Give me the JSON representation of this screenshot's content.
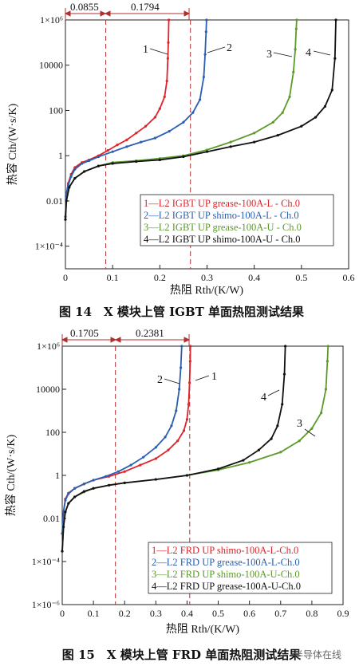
{
  "colors": {
    "red": "#e0222a",
    "blue": "#2a5fb0",
    "green": "#5c9a2a",
    "black": "#111111",
    "marker": "#b03030"
  },
  "watermark": "半导体在线",
  "figures": [
    {
      "caption": "图 14　X 模块上管 IGBT 单面热阻测试结果",
      "ylabel": "热容 Cth/(W·s/K)",
      "xlabel": "热阻 Rth/(K/W)",
      "markers": [
        "0.0855",
        "0.1794"
      ],
      "legend": [
        "1—L2 IGBT UP grease-100A-L - Ch.0",
        "2—L2 IGBT UP shimo-100A-L - Ch.0",
        "3—L2 IGBT UP grease-100A-U - Ch.0",
        "4—L2 IGBT UP shimo-100A-U - Ch.0"
      ],
      "curve_labels": [
        "1",
        "2",
        "3",
        "4"
      ]
    },
    {
      "caption": "图 15　X 模块上管 FRD 单面热阻测试结果",
      "ylabel": "热容 Cth/(W·s/K)",
      "xlabel": "热阻 Rth/(K/W)",
      "markers": [
        "0.1705",
        "0.2381"
      ],
      "legend": [
        "1—L2 FRD UP shimo-100A-L-Ch.0",
        "2—L2 FRD UP grease-100A-L-Ch.0",
        "3—L2 FRD UP shimo-100A-U-Ch.0",
        "4—L2 FRD UP grease-100A-U-Ch.0"
      ],
      "curve_labels": [
        "2",
        "1",
        "4",
        "3"
      ]
    }
  ],
  "chart_data": [
    {
      "type": "line",
      "xlabel": "热阻 Rth/(K/W)",
      "ylabel": "热容 Cth/(W·s/K)",
      "xlim": [
        0,
        0.6
      ],
      "ylim": [
        1e-05,
        1000000.0
      ],
      "yscale": "log",
      "xticks": [
        "0",
        "0.1",
        "0.2",
        "0.3",
        "0.4",
        "0.5",
        "0.6"
      ],
      "yticks": [
        "1×10⁶",
        "10000",
        "100",
        "1",
        "0.01",
        "1×10⁻⁴"
      ],
      "ytick_values": [
        1000000,
        10000,
        100,
        1,
        0.01,
        0.0001
      ],
      "vlines": [
        0.0855,
        0.2649
      ],
      "series": [
        {
          "name": "1—L2 IGBT UP grease-100A-L - Ch.0",
          "color": "red",
          "points": [
            [
              0.0,
              0.002
            ],
            [
              0.002,
              0.02
            ],
            [
              0.006,
              0.06
            ],
            [
              0.012,
              0.15
            ],
            [
              0.02,
              0.3
            ],
            [
              0.035,
              0.5
            ],
            [
              0.05,
              0.65
            ],
            [
              0.07,
              1.0
            ],
            [
              0.09,
              1.7
            ],
            [
              0.11,
              3
            ],
            [
              0.13,
              5
            ],
            [
              0.15,
              10
            ],
            [
              0.17,
              20
            ],
            [
              0.19,
              50
            ],
            [
              0.2,
              120
            ],
            [
              0.21,
              400
            ],
            [
              0.215,
              2000
            ],
            [
              0.217,
              20000
            ],
            [
              0.218,
              100000
            ],
            [
              0.219,
              1000000
            ]
          ]
        },
        {
          "name": "2—L2 IGBT UP shimo-100A-L - Ch.0",
          "color": "blue",
          "points": [
            [
              0.0,
              0.002
            ],
            [
              0.002,
              0.02
            ],
            [
              0.006,
              0.05
            ],
            [
              0.012,
              0.12
            ],
            [
              0.02,
              0.25
            ],
            [
              0.035,
              0.45
            ],
            [
              0.05,
              0.6
            ],
            [
              0.07,
              0.9
            ],
            [
              0.1,
              1.5
            ],
            [
              0.13,
              2.5
            ],
            [
              0.16,
              4
            ],
            [
              0.19,
              6
            ],
            [
              0.22,
              12
            ],
            [
              0.25,
              30
            ],
            [
              0.27,
              80
            ],
            [
              0.285,
              300
            ],
            [
              0.293,
              3000
            ],
            [
              0.296,
              30000
            ],
            [
              0.298,
              300000
            ],
            [
              0.299,
              1000000
            ]
          ]
        },
        {
          "name": "3—L2 IGBT UP grease-100A-U - Ch.0",
          "color": "green",
          "points": [
            [
              0.0,
              0.0015
            ],
            [
              0.002,
              0.01
            ],
            [
              0.008,
              0.04
            ],
            [
              0.02,
              0.1
            ],
            [
              0.04,
              0.2
            ],
            [
              0.07,
              0.35
            ],
            [
              0.1,
              0.5
            ],
            [
              0.15,
              0.6
            ],
            [
              0.2,
              0.75
            ],
            [
              0.25,
              1.0
            ],
            [
              0.3,
              1.8
            ],
            [
              0.35,
              4
            ],
            [
              0.4,
              10
            ],
            [
              0.44,
              30
            ],
            [
              0.46,
              80
            ],
            [
              0.475,
              400
            ],
            [
              0.483,
              5000
            ],
            [
              0.487,
              50000
            ],
            [
              0.489,
              400000
            ],
            [
              0.49,
              1000000
            ]
          ]
        },
        {
          "name": "4—L2 IGBT UP shimo-100A-U - Ch.0",
          "color": "black",
          "points": [
            [
              0.0,
              0.0015
            ],
            [
              0.002,
              0.01
            ],
            [
              0.008,
              0.04
            ],
            [
              0.02,
              0.1
            ],
            [
              0.04,
              0.2
            ],
            [
              0.07,
              0.35
            ],
            [
              0.1,
              0.45
            ],
            [
              0.15,
              0.55
            ],
            [
              0.2,
              0.65
            ],
            [
              0.25,
              0.9
            ],
            [
              0.3,
              1.5
            ],
            [
              0.35,
              2.5
            ],
            [
              0.4,
              4
            ],
            [
              0.45,
              8
            ],
            [
              0.5,
              20
            ],
            [
              0.53,
              50
            ],
            [
              0.55,
              150
            ],
            [
              0.565,
              800
            ],
            [
              0.571,
              20000
            ],
            [
              0.573,
              1000000
            ]
          ]
        }
      ]
    },
    {
      "type": "line",
      "xlabel": "热阻 Rth/(K/W)",
      "ylabel": "热容 Cth/(W·s/K)",
      "xlim": [
        0,
        0.9
      ],
      "ylim": [
        1e-06,
        1000000.0
      ],
      "yscale": "log",
      "xticks": [
        "0",
        "0.1",
        "0.2",
        "0.3",
        "0.4",
        "0.5",
        "0.6",
        "0.7",
        "0.8",
        "0.9"
      ],
      "yticks": [
        "1×10⁶",
        "10000",
        "100",
        "1",
        "0.01",
        "1×10⁻⁴",
        "1×10⁻⁶"
      ],
      "ytick_values": [
        1000000,
        10000,
        100,
        1,
        0.01,
        0.0001,
        1e-06
      ],
      "vlines": [
        0.1705,
        0.4086
      ],
      "series": [
        {
          "name": "1—L2 FRD UP shimo-100A-L-Ch.0",
          "color": "red",
          "points": [
            [
              0.0,
              0.002
            ],
            [
              0.004,
              0.02
            ],
            [
              0.01,
              0.08
            ],
            [
              0.02,
              0.15
            ],
            [
              0.04,
              0.25
            ],
            [
              0.07,
              0.4
            ],
            [
              0.1,
              0.6
            ],
            [
              0.15,
              0.9
            ],
            [
              0.2,
              1.5
            ],
            [
              0.25,
              3
            ],
            [
              0.3,
              6
            ],
            [
              0.34,
              15
            ],
            [
              0.37,
              40
            ],
            [
              0.39,
              120
            ],
            [
              0.4,
              400
            ],
            [
              0.405,
              2000
            ],
            [
              0.408,
              20000
            ],
            [
              0.41,
              200000
            ],
            [
              0.411,
              1000000
            ]
          ]
        },
        {
          "name": "2—L2 FRD UP grease-100A-L-Ch.0",
          "color": "blue",
          "points": [
            [
              0.0,
              0.002
            ],
            [
              0.004,
              0.02
            ],
            [
              0.01,
              0.07
            ],
            [
              0.02,
              0.14
            ],
            [
              0.04,
              0.25
            ],
            [
              0.07,
              0.4
            ],
            [
              0.1,
              0.6
            ],
            [
              0.14,
              0.9
            ],
            [
              0.18,
              1.5
            ],
            [
              0.22,
              3
            ],
            [
              0.26,
              7
            ],
            [
              0.3,
              20
            ],
            [
              0.33,
              60
            ],
            [
              0.35,
              200
            ],
            [
              0.365,
              1000
            ],
            [
              0.375,
              10000
            ],
            [
              0.38,
              100000
            ],
            [
              0.383,
              1000000
            ]
          ]
        },
        {
          "name": "3—L2 FRD UP shimo-100A-U-Ch.0",
          "color": "green",
          "points": [
            [
              0.0,
              0.0003
            ],
            [
              0.004,
              0.004
            ],
            [
              0.01,
              0.02
            ],
            [
              0.02,
              0.05
            ],
            [
              0.04,
              0.1
            ],
            [
              0.07,
              0.17
            ],
            [
              0.1,
              0.25
            ],
            [
              0.15,
              0.35
            ],
            [
              0.2,
              0.45
            ],
            [
              0.3,
              0.65
            ],
            [
              0.4,
              1.0
            ],
            [
              0.5,
              1.8
            ],
            [
              0.6,
              4
            ],
            [
              0.7,
              12
            ],
            [
              0.76,
              40
            ],
            [
              0.8,
              150
            ],
            [
              0.83,
              800
            ],
            [
              0.845,
              10000
            ],
            [
              0.85,
              200000
            ],
            [
              0.852,
              1000000
            ]
          ]
        },
        {
          "name": "4—L2 FRD UP grease-100A-U-Ch.0",
          "color": "black",
          "points": [
            [
              0.0,
              0.0003
            ],
            [
              0.004,
              0.004
            ],
            [
              0.01,
              0.02
            ],
            [
              0.02,
              0.05
            ],
            [
              0.04,
              0.1
            ],
            [
              0.07,
              0.18
            ],
            [
              0.1,
              0.25
            ],
            [
              0.15,
              0.35
            ],
            [
              0.2,
              0.45
            ],
            [
              0.3,
              0.65
            ],
            [
              0.4,
              1.0
            ],
            [
              0.5,
              2
            ],
            [
              0.58,
              5
            ],
            [
              0.63,
              15
            ],
            [
              0.67,
              50
            ],
            [
              0.69,
              200
            ],
            [
              0.705,
              2000
            ],
            [
              0.712,
              50000
            ],
            [
              0.715,
              1000000
            ]
          ]
        }
      ]
    }
  ]
}
